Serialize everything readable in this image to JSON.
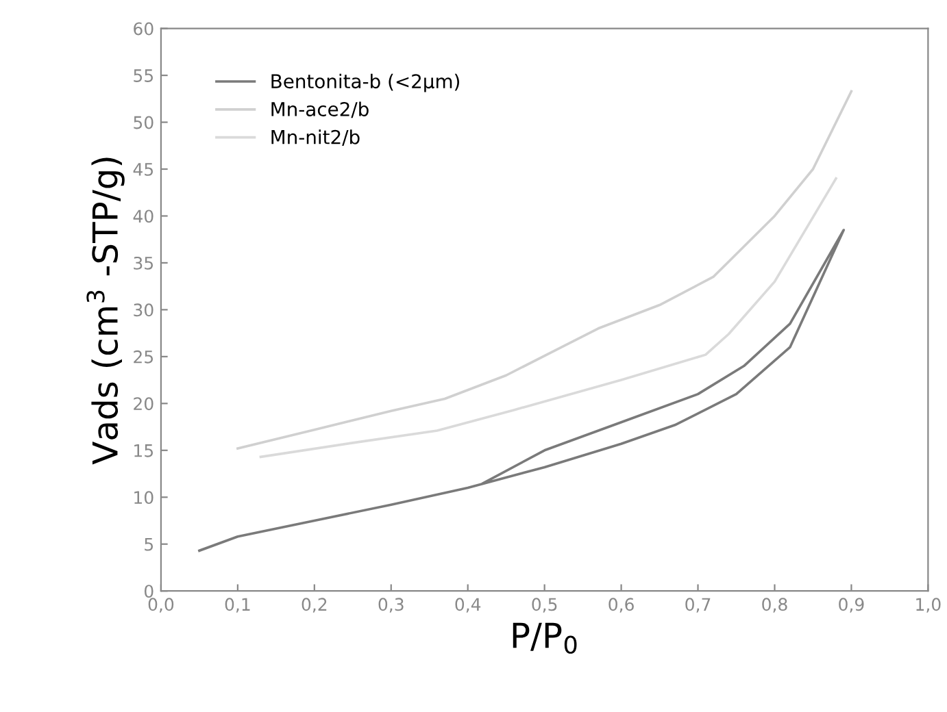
{
  "chart_data": {
    "type": "line",
    "xlabel": "P/P$_{0}$",
    "ylabel": "Vads (cm$^{3}$ -STP/g)",
    "xlim": [
      0,
      1
    ],
    "ylim": [
      0,
      60
    ],
    "xticks": [
      {
        "value": 0,
        "label": "0,0"
      },
      {
        "value": 0.1,
        "label": "0,1"
      },
      {
        "value": 0.2,
        "label": "0,2"
      },
      {
        "value": 0.3,
        "label": "0,3"
      },
      {
        "value": 0.4,
        "label": "0,4"
      },
      {
        "value": 0.5,
        "label": "0,5"
      },
      {
        "value": 0.6,
        "label": "0,6"
      },
      {
        "value": 0.7,
        "label": "0,7"
      },
      {
        "value": 0.8,
        "label": "0,8"
      },
      {
        "value": 0.9,
        "label": "0,9"
      },
      {
        "value": 1,
        "label": "1,0"
      }
    ],
    "yticks": [
      0,
      5,
      10,
      15,
      20,
      25,
      30,
      35,
      40,
      45,
      50,
      55,
      60
    ],
    "legend": "top left",
    "grid": false,
    "marker": "none",
    "line_style": "solid",
    "series": [
      {
        "name": "Bentonita-b (<2µm)",
        "color": "#7a7a7a",
        "x": [
          0.05,
          0.1,
          0.2,
          0.3,
          0.4,
          0.5,
          0.6,
          0.67,
          0.75,
          0.82,
          0.89,
          0.82,
          0.76,
          0.7,
          0.6,
          0.5,
          0.42
        ],
        "values": [
          4.3,
          5.8,
          7.5,
          9.2,
          11,
          13.2,
          15.7,
          17.7,
          21,
          26,
          38.5,
          28.5,
          24,
          21,
          18,
          15,
          11.5
        ]
      },
      {
        "name": "Mn-ace2/b",
        "color": "#d0d0d0",
        "x": [
          0.1,
          0.2,
          0.3,
          0.37,
          0.45,
          0.57,
          0.65,
          0.72,
          0.8,
          0.85,
          0.9
        ],
        "values": [
          15.2,
          17.2,
          19.2,
          20.5,
          23,
          28,
          30.5,
          33.5,
          40,
          45,
          53.3
        ]
      },
      {
        "name": "Mn-nit2/b",
        "color": "#dadada",
        "x": [
          0.13,
          0.25,
          0.36,
          0.46,
          0.6,
          0.71,
          0.74,
          0.8,
          0.88
        ],
        "values": [
          14.3,
          15.8,
          17.1,
          19.3,
          22.5,
          25.2,
          27.4,
          33,
          44
        ]
      }
    ]
  }
}
